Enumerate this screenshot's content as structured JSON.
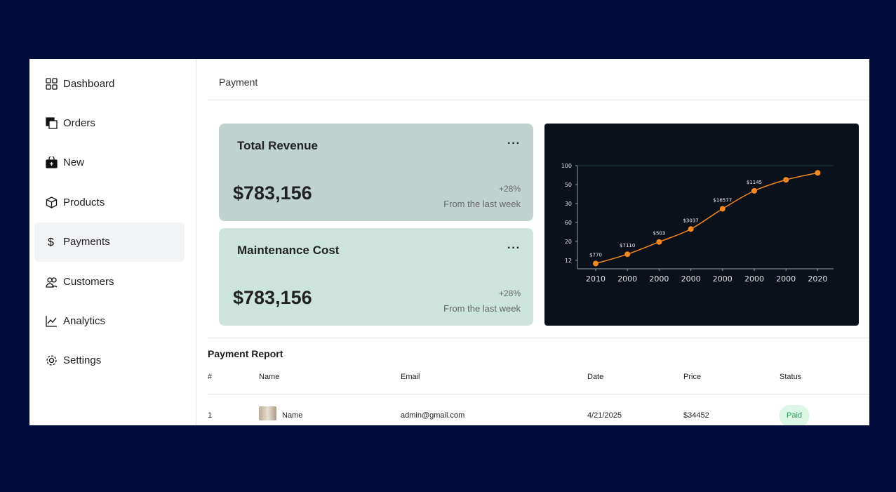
{
  "sidebar": {
    "items": [
      "Dashboard",
      "Orders",
      "New",
      "Products",
      "Payments",
      "Customers",
      "Analytics",
      "Settings"
    ],
    "active": 4
  },
  "header": {
    "title": "Payment"
  },
  "cards": [
    {
      "title": "Total Revenue",
      "menu": "···",
      "value": "$783,156",
      "change": "+28%",
      "note": "From the last week"
    },
    {
      "title": "Maintenance Cost",
      "menu": "···",
      "value": "$783,156",
      "change": "+28%",
      "note": "From the last week"
    }
  ],
  "chart_data": {
    "type": "line",
    "categories": [
      "2010",
      "2000",
      "2000",
      "2000",
      "2000",
      "2000",
      "2000",
      "2020"
    ],
    "values": [
      0.83,
      1.32,
      1.97,
      2.65,
      3.72,
      4.67,
      5.25,
      5.62
    ],
    "annotations": [
      "$770",
      "$7110",
      "$503",
      "$3037",
      "$16577",
      "$1145"
    ],
    "color": "#f5891f",
    "ylim": [
      0.55,
      6
    ],
    "yticks": [
      {
        "value": 1,
        "label": "12"
      },
      {
        "value": 2,
        "label": "20"
      },
      {
        "value": 3,
        "label": "60"
      },
      {
        "value": 4,
        "label": "30"
      },
      {
        "value": 5,
        "label": "50"
      },
      {
        "value": 6,
        "label": "100"
      }
    ]
  },
  "report": {
    "title": "Payment Report",
    "columns": [
      "#",
      "Name",
      "Email",
      "Date",
      "Price",
      "Status"
    ],
    "rows": [
      [
        "1",
        "Name",
        "admin@gmail.com",
        "4/21/2025",
        "$34452",
        "Paid"
      ]
    ]
  }
}
